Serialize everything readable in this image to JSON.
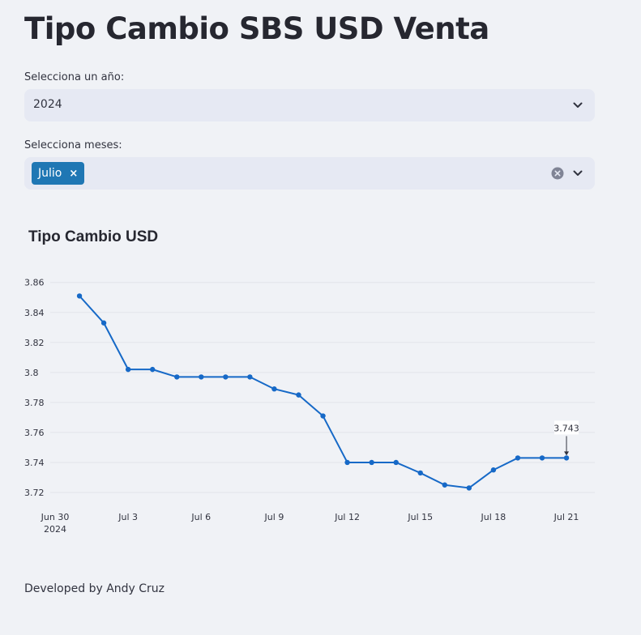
{
  "header": {
    "title": "Tipo Cambio SBS USD Venta"
  },
  "year_select": {
    "label": "Selecciona un año:",
    "value": "2024",
    "icon": "chevron-down-icon"
  },
  "month_select": {
    "label": "Selecciona meses:",
    "tags": [
      "Julio"
    ],
    "tag_remove": "×",
    "icons": [
      "clear-icon",
      "chevron-down-icon"
    ]
  },
  "colors": {
    "accent": "#1f77b4",
    "line": "#1669c7",
    "background": "#f0f2f6",
    "input_bg": "#e6e9f3"
  },
  "chart_data": {
    "type": "line",
    "title": "Tipo Cambio USD",
    "xlabel": "",
    "ylabel": "",
    "x": [
      "2024-07-01",
      "2024-07-02",
      "2024-07-03",
      "2024-07-04",
      "2024-07-05",
      "2024-07-06",
      "2024-07-07",
      "2024-07-08",
      "2024-07-09",
      "2024-07-10",
      "2024-07-11",
      "2024-07-12",
      "2024-07-13",
      "2024-07-14",
      "2024-07-15",
      "2024-07-16",
      "2024-07-17",
      "2024-07-18",
      "2024-07-19",
      "2024-07-20",
      "2024-07-21"
    ],
    "series": [
      {
        "values": [
          3.851,
          3.833,
          3.802,
          3.802,
          3.797,
          3.797,
          3.797,
          3.797,
          3.789,
          3.785,
          3.771,
          3.74,
          3.74,
          3.74,
          3.733,
          3.725,
          3.723,
          3.735,
          3.743,
          3.743,
          3.743
        ]
      }
    ],
    "ylim": [
      3.71,
      3.87
    ],
    "y_ticks": [
      "3.72",
      "3.74",
      "3.76",
      "3.78",
      "3.8",
      "3.82",
      "3.84",
      "3.86"
    ],
    "x_ticks": [
      {
        "date": "2024-06-30",
        "label": "Jun 30",
        "sublabel": "2024"
      },
      {
        "date": "2024-07-03",
        "label": "Jul 3"
      },
      {
        "date": "2024-07-06",
        "label": "Jul 6"
      },
      {
        "date": "2024-07-09",
        "label": "Jul 9"
      },
      {
        "date": "2024-07-12",
        "label": "Jul 12"
      },
      {
        "date": "2024-07-15",
        "label": "Jul 15"
      },
      {
        "date": "2024-07-18",
        "label": "Jul 18"
      },
      {
        "date": "2024-07-21",
        "label": "Jul 21"
      }
    ],
    "annotation": {
      "date": "2024-07-21",
      "text": "3.743"
    },
    "grid": true
  },
  "footer": {
    "text": "Developed by Andy Cruz"
  }
}
